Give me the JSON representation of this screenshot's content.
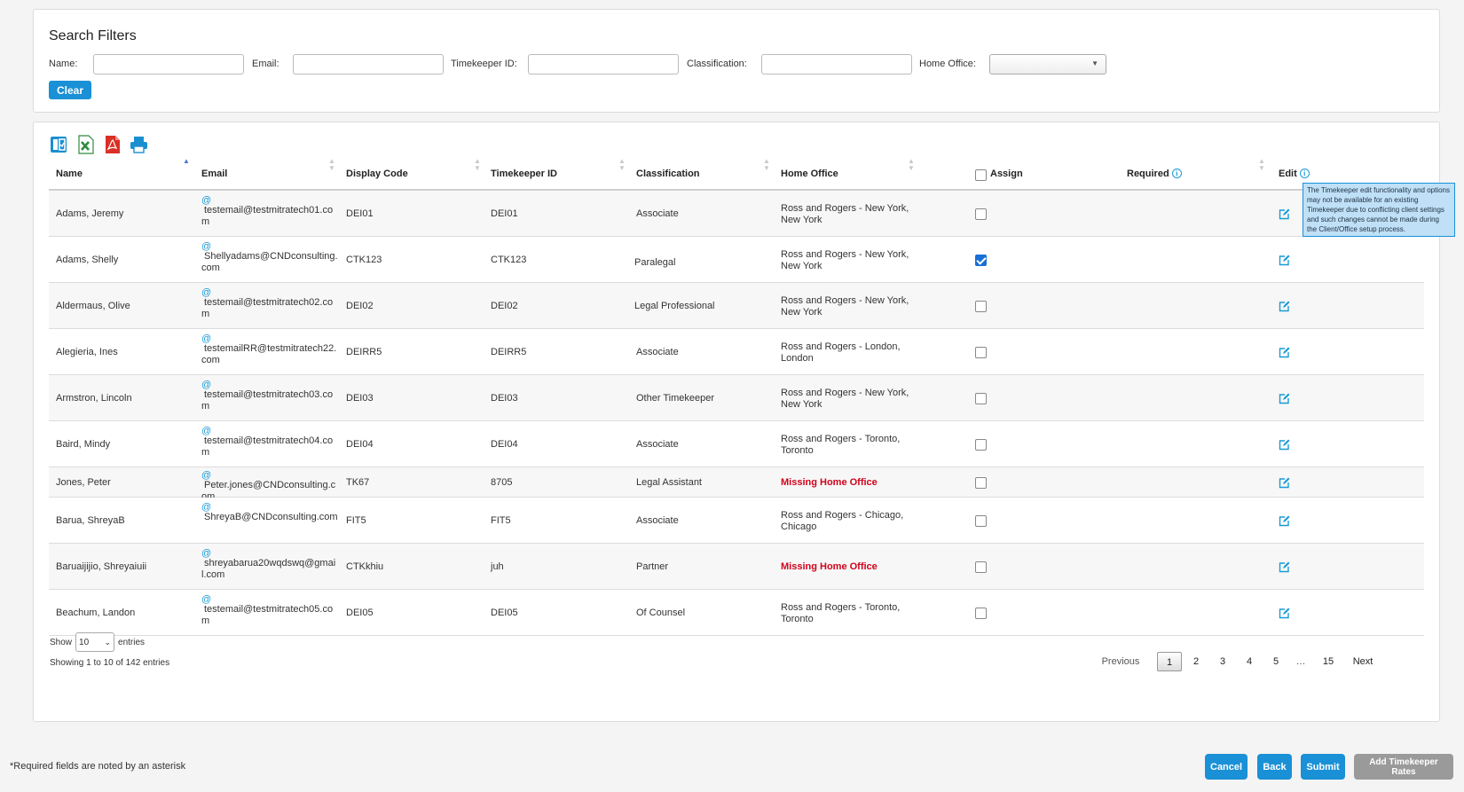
{
  "filters": {
    "title": "Search Filters",
    "name_label": "Name:",
    "email_label": "Email:",
    "timekeeper_id_label": "Timekeeper ID:",
    "classification_label": "Classification:",
    "home_office_label": "Home Office:",
    "name_value": "",
    "email_value": "",
    "timekeeper_id_value": "",
    "classification_value": "",
    "home_office_value": "",
    "clear_label": "Clear"
  },
  "toolbar": {
    "icons": [
      "copy-icon",
      "excel-icon",
      "pdf-icon",
      "print-icon"
    ]
  },
  "table": {
    "headers": {
      "name": "Name",
      "email": "Email",
      "display_code": "Display Code",
      "timekeeper_id": "Timekeeper ID",
      "classification": "Classification",
      "home_office": "Home Office",
      "assign": "Assign",
      "required": "Required",
      "edit": "Edit"
    },
    "assign_all_checked": false,
    "edit_tooltip": "The Timekeeper edit functionality and options may not be available for an existing Timekeeper due to conflicting client settings and such changes cannot be made during the Client/Office setup process.",
    "rows": [
      {
        "name": "Adams, Jeremy",
        "email": "testemail@testmitratech01.com",
        "display_code": "DEI01",
        "timekeeper_id": "DEI01",
        "classification": "Associate",
        "home_office": "Ross and Rogers - New York, New York",
        "missing": false,
        "assigned": false
      },
      {
        "name": "Adams, Shelly",
        "email": "Shellyadams@CNDconsulting.com",
        "display_code": "CTK123",
        "timekeeper_id": "CTK123",
        "classification": "Paralegal",
        "home_office": "Ross and Rogers - New York, New York",
        "missing": false,
        "assigned": true
      },
      {
        "name": "Aldermaus, Olive",
        "email": "testemail@testmitratech02.com",
        "display_code": "DEI02",
        "timekeeper_id": "DEI02",
        "classification": "Legal Professional",
        "home_office": "Ross and Rogers - New York, New York",
        "missing": false,
        "assigned": false
      },
      {
        "name": "Alegieria, Ines",
        "email": "testemailRR@testmitratech22.com",
        "display_code": "DEIRR5",
        "timekeeper_id": "DEIRR5",
        "classification": "Associate",
        "home_office": "Ross and Rogers - London, London",
        "missing": false,
        "assigned": false
      },
      {
        "name": "Armstron, Lincoln",
        "email": "testemail@testmitratech03.com",
        "display_code": "DEI03",
        "timekeeper_id": "DEI03",
        "classification": "Other Timekeeper",
        "home_office": "Ross and Rogers - New York, New York",
        "missing": false,
        "assigned": false
      },
      {
        "name": "Baird, Mindy",
        "email": "testemail@testmitratech04.com",
        "display_code": "DEI04",
        "timekeeper_id": "DEI04",
        "classification": "Associate",
        "home_office": "Ross and Rogers - Toronto, Toronto",
        "missing": false,
        "assigned": false
      },
      {
        "name": "Jones, Peter",
        "email": "Peter.jones@CNDconsulting.com",
        "display_code": "TK67",
        "timekeeper_id": "8705",
        "classification": "Legal Assistant",
        "home_office": "Missing Home Office",
        "missing": true,
        "assigned": false
      },
      {
        "name": "Barua, ShreyaB",
        "email": "ShreyaB@CNDconsulting.com",
        "display_code": "FIT5",
        "timekeeper_id": "FIT5",
        "classification": "Associate",
        "home_office": "Ross and Rogers - Chicago, Chicago",
        "missing": false,
        "assigned": false
      },
      {
        "name": "Baruaijijio, Shreyaiuii",
        "email": "shreyabarua20wqdswq@gmail.com",
        "display_code": "CTKkhiu",
        "timekeeper_id": "juh",
        "classification": "Partner",
        "home_office": "Missing Home Office",
        "missing": true,
        "assigned": false
      },
      {
        "name": "Beachum, Landon",
        "email": "testemail@testmitratech05.com",
        "display_code": "DEI05",
        "timekeeper_id": "DEI05",
        "classification": "Of Counsel",
        "home_office": "Ross and Rogers - Toronto, Toronto",
        "missing": false,
        "assigned": false
      }
    ]
  },
  "length": {
    "show_label": "Show",
    "value": "10",
    "entries_label": "entries"
  },
  "info": "Showing 1 to 10 of 142 entries",
  "pagination": {
    "previous": "Previous",
    "pages": [
      "1",
      "2",
      "3",
      "4",
      "5",
      "…",
      "15"
    ],
    "current": "1",
    "next": "Next"
  },
  "footer": {
    "note": "*Required fields are noted by an asterisk",
    "cancel": "Cancel",
    "back": "Back",
    "submit": "Submit",
    "add_rates": "Add Timekeeper Rates"
  },
  "colors": {
    "accent": "#1a90d6",
    "missing": "#d0021b",
    "disabled": "#9a9a9a"
  }
}
